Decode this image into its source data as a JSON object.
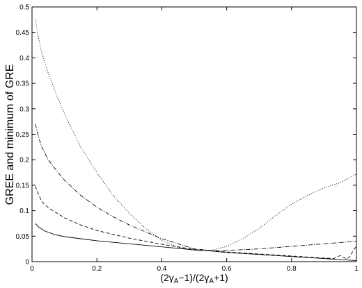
{
  "chart_data": {
    "type": "line",
    "title": "",
    "xlabel": "(2γA−1)/(2γA+1)",
    "xlabel_parts": {
      "open": "(2γ",
      "sub": "A",
      "mid": "−1)/(2γ",
      "sub2": "A",
      "close": "+1)"
    },
    "ylabel": "GREE and minimum of GRE",
    "xlim": [
      0,
      1
    ],
    "ylim": [
      0,
      0.5
    ],
    "xticks": [
      0,
      0.2,
      0.4,
      0.6,
      0.8,
      1
    ],
    "xtick_labels": [
      "0",
      "0.2",
      "0.4",
      "0.6",
      "0.8",
      "1"
    ],
    "yticks": [
      0,
      0.05,
      0.1,
      0.15,
      0.2,
      0.25,
      0.3,
      0.35,
      0.4,
      0.45,
      0.5
    ],
    "ytick_labels": [
      "0",
      "0.05",
      "0.1",
      "0.15",
      "0.2",
      "0.25",
      "0.3",
      "0.35",
      "0.4",
      "0.45",
      "0.5"
    ],
    "grid": false,
    "legend": "none",
    "series": [
      {
        "style": "solid",
        "x": [
          0.01,
          0.02,
          0.04,
          0.07,
          0.1,
          0.15,
          0.2,
          0.3,
          0.4,
          0.5,
          0.55,
          0.6,
          0.7,
          0.8,
          0.9,
          0.95,
          1.0
        ],
        "y": [
          0.075,
          0.068,
          0.06,
          0.053,
          0.049,
          0.045,
          0.041,
          0.035,
          0.029,
          0.023,
          0.021,
          0.018,
          0.014,
          0.01,
          0.006,
          0.004,
          0.002
        ]
      },
      {
        "style": "dashed",
        "x": [
          0.01,
          0.02,
          0.03,
          0.05,
          0.08,
          0.1,
          0.15,
          0.2,
          0.3,
          0.4,
          0.5,
          0.55,
          0.6,
          0.7,
          0.8,
          0.85,
          0.9,
          0.93,
          0.95,
          0.97,
          0.98,
          0.99,
          1.0
        ],
        "y": [
          0.148,
          0.132,
          0.118,
          0.106,
          0.094,
          0.086,
          0.072,
          0.061,
          0.046,
          0.034,
          0.024,
          0.021,
          0.019,
          0.015,
          0.011,
          0.009,
          0.007,
          0.006,
          0.012,
          0.005,
          0.01,
          0.022,
          0.03
        ]
      },
      {
        "style": "dash-dot",
        "x": [
          0.01,
          0.02,
          0.03,
          0.05,
          0.08,
          0.1,
          0.15,
          0.2,
          0.25,
          0.3,
          0.4,
          0.5,
          0.55,
          0.6,
          0.7,
          0.8,
          0.9,
          1.0
        ],
        "y": [
          0.27,
          0.245,
          0.225,
          0.2,
          0.175,
          0.16,
          0.13,
          0.107,
          0.088,
          0.072,
          0.045,
          0.025,
          0.022,
          0.022,
          0.025,
          0.03,
          0.035,
          0.04
        ]
      },
      {
        "style": "dotted",
        "x": [
          0.01,
          0.02,
          0.03,
          0.05,
          0.08,
          0.1,
          0.15,
          0.2,
          0.25,
          0.3,
          0.35,
          0.4,
          0.45,
          0.5,
          0.55,
          0.6,
          0.65,
          0.7,
          0.75,
          0.8,
          0.85,
          0.9,
          0.95,
          1.0
        ],
        "y": [
          0.475,
          0.44,
          0.41,
          0.37,
          0.32,
          0.29,
          0.225,
          0.175,
          0.13,
          0.095,
          0.065,
          0.042,
          0.028,
          0.022,
          0.022,
          0.03,
          0.045,
          0.065,
          0.09,
          0.113,
          0.13,
          0.145,
          0.155,
          0.172
        ]
      }
    ]
  }
}
